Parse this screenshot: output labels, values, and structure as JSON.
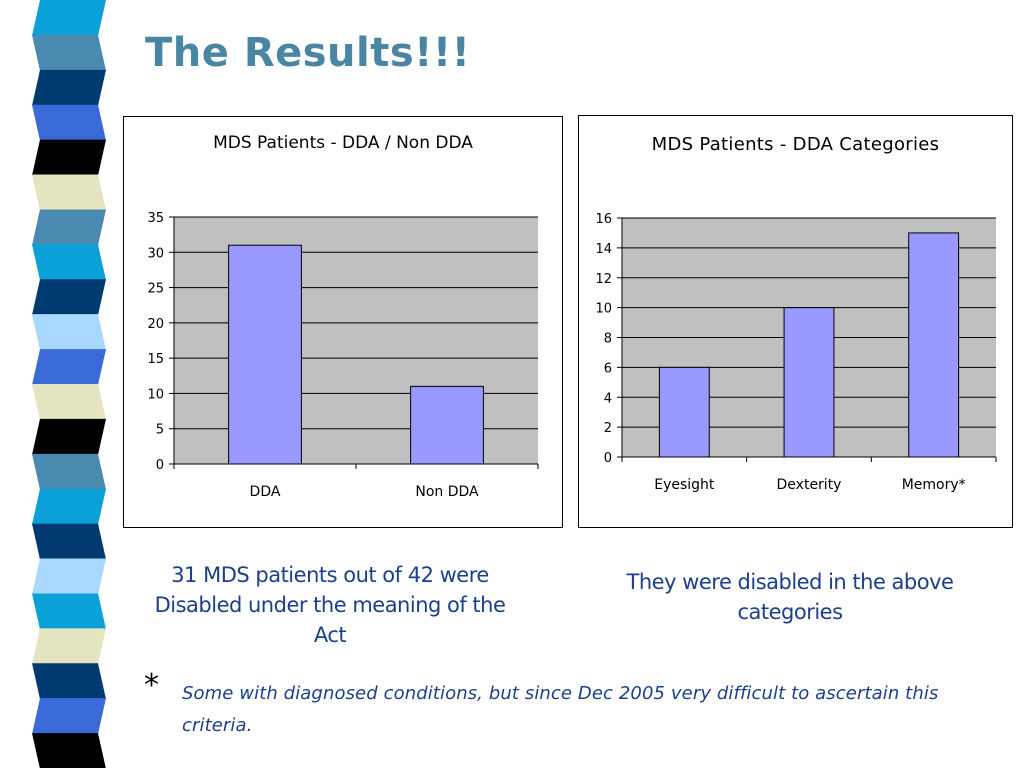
{
  "slide": {
    "title": "The Results!!!",
    "caption_left": "31 MDS patients out of 42 were Disabled under the meaning of the Act",
    "caption_right": "They were disabled in the above categories",
    "footnote_marker": "*",
    "footnote": "Some with diagnosed conditions, but since Dec 2005 very difficult to ascertain this criteria."
  },
  "colors": {
    "title": "#4a86a4",
    "caption": "#1b3f8c",
    "plot_bg": "#c0c0c0",
    "bar_fill": "#9999ff",
    "bar_stroke": "#000000"
  },
  "decor_strip_colors": [
    "#0aa0d8",
    "#4a8ab0",
    "#003a70",
    "#3a6ad8",
    "#000000",
    "#e4e4c0",
    "#4a8ab0",
    "#0aa0d8",
    "#003a70",
    "#a8d8ff",
    "#3a6ad8",
    "#e4e4c0",
    "#000000",
    "#4a8ab0",
    "#0aa0d8",
    "#003a70",
    "#a8d8ff",
    "#0aa0d8",
    "#e4e4c0",
    "#003a70",
    "#3a6ad8",
    "#000000"
  ],
  "chart_data": [
    {
      "type": "bar",
      "title": "MDS Patients - DDA / Non DDA",
      "categories": [
        "DDA",
        "Non DDA"
      ],
      "values": [
        31,
        11
      ],
      "ylim": [
        0,
        35
      ],
      "yticks": [
        0,
        5,
        10,
        15,
        20,
        25,
        30,
        35
      ],
      "grid": true,
      "legend": "none"
    },
    {
      "type": "bar",
      "title": "MDS Patients  - DDA Categories",
      "categories": [
        "Eyesight",
        "Dexterity",
        "Memory*"
      ],
      "values": [
        6,
        10,
        15
      ],
      "ylim": [
        0,
        16
      ],
      "yticks": [
        0,
        2,
        4,
        6,
        8,
        10,
        12,
        14,
        16
      ],
      "grid": true,
      "legend": "none"
    }
  ]
}
